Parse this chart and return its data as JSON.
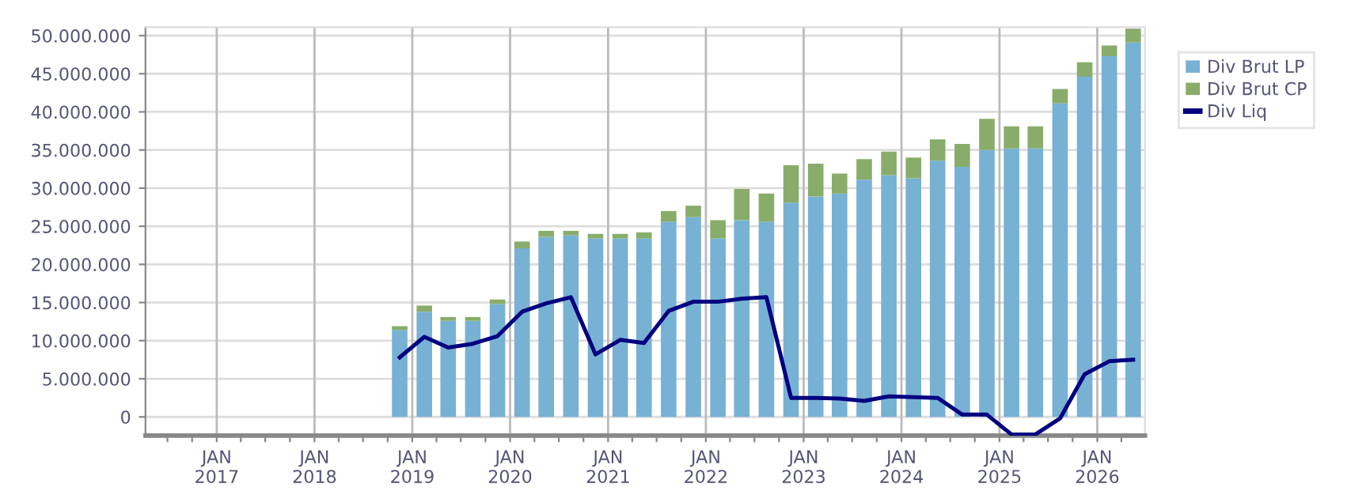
{
  "chart_data": {
    "type": "bar",
    "stacked": true,
    "x": [
      "2018-11-15",
      "2019-02-15",
      "2019-05-15",
      "2019-08-15",
      "2019-11-15",
      "2020-02-15",
      "2020-05-15",
      "2020-08-15",
      "2020-11-15",
      "2021-02-15",
      "2021-05-15",
      "2021-08-15",
      "2021-11-15",
      "2022-02-15",
      "2022-05-15",
      "2022-08-15",
      "2022-11-15",
      "2023-02-15",
      "2023-05-15",
      "2023-08-15",
      "2023-11-15",
      "2024-02-15",
      "2024-05-15",
      "2024-08-15",
      "2024-11-15",
      "2025-02-15",
      "2025-05-15",
      "2025-08-15",
      "2025-11-15",
      "2026-02-15",
      "2026-05-15"
    ],
    "series": [
      {
        "name": "Div Brut LP",
        "color": "#77b1d4",
        "values": [
          11400000,
          13800000,
          12600000,
          12600000,
          14800000,
          22100000,
          23600000,
          23800000,
          23400000,
          23400000,
          23400000,
          25600000,
          26200000,
          23400000,
          25800000,
          25600000,
          28100000,
          28900000,
          29300000,
          31100000,
          31700000,
          31300000,
          33600000,
          32800000,
          35000000,
          35200000,
          35200000,
          41100000,
          44600000,
          47300000,
          49100000
        ]
      },
      {
        "name": "Div Brut CP",
        "color": "#88ad6a",
        "values": [
          500000,
          800000,
          500000,
          500000,
          600000,
          900000,
          800000,
          600000,
          600000,
          600000,
          800000,
          1400000,
          1500000,
          2400000,
          4100000,
          3700000,
          4900000,
          4300000,
          2600000,
          2700000,
          3100000,
          2700000,
          2800000,
          3000000,
          4100000,
          2900000,
          2900000,
          1900000,
          1900000,
          1400000,
          1800000
        ]
      },
      {
        "name": "Div Liq",
        "type": "line",
        "color": "#000080",
        "values": [
          7800000,
          10500000,
          9100000,
          9600000,
          10600000,
          13800000,
          14900000,
          15700000,
          8200000,
          10100000,
          9700000,
          13900000,
          15100000,
          15100000,
          15500000,
          15700000,
          2500000,
          2500000,
          2400000,
          2100000,
          2700000,
          2600000,
          2500000,
          300000,
          300000,
          -2300000,
          -2300000,
          -200000,
          5600000,
          7300000,
          7500000
        ]
      }
    ],
    "xlim": [
      "2016-04-10",
      "2026-06-28"
    ],
    "xticks": [
      {
        "value": "2016-07-01",
        "label": null
      },
      {
        "value": "2016-10-01",
        "label": null
      },
      {
        "value": "2017-01-01",
        "label": "JAN\n2017"
      },
      {
        "value": "2017-04-01",
        "label": null
      },
      {
        "value": "2017-07-01",
        "label": null
      },
      {
        "value": "2017-10-01",
        "label": null
      },
      {
        "value": "2018-01-01",
        "label": "JAN\n2018"
      },
      {
        "value": "2018-04-01",
        "label": null
      },
      {
        "value": "2018-07-01",
        "label": null
      },
      {
        "value": "2018-10-01",
        "label": null
      },
      {
        "value": "2019-01-01",
        "label": "JAN\n2019"
      },
      {
        "value": "2019-04-01",
        "label": null
      },
      {
        "value": "2019-07-01",
        "label": null
      },
      {
        "value": "2019-10-01",
        "label": null
      },
      {
        "value": "2020-01-01",
        "label": "JAN\n2020"
      },
      {
        "value": "2020-04-01",
        "label": null
      },
      {
        "value": "2020-07-01",
        "label": null
      },
      {
        "value": "2020-10-01",
        "label": null
      },
      {
        "value": "2021-01-01",
        "label": "JAN\n2021"
      },
      {
        "value": "2021-04-01",
        "label": null
      },
      {
        "value": "2021-07-01",
        "label": null
      },
      {
        "value": "2021-10-01",
        "label": null
      },
      {
        "value": "2022-01-01",
        "label": "JAN\n2022"
      },
      {
        "value": "2022-04-01",
        "label": null
      },
      {
        "value": "2022-07-01",
        "label": null
      },
      {
        "value": "2022-10-01",
        "label": null
      },
      {
        "value": "2023-01-01",
        "label": "JAN\n2023"
      },
      {
        "value": "2023-04-01",
        "label": null
      },
      {
        "value": "2023-07-01",
        "label": null
      },
      {
        "value": "2023-10-01",
        "label": null
      },
      {
        "value": "2024-01-01",
        "label": "JAN\n2024"
      },
      {
        "value": "2024-04-01",
        "label": null
      },
      {
        "value": "2024-07-01",
        "label": null
      },
      {
        "value": "2024-10-01",
        "label": null
      },
      {
        "value": "2025-01-01",
        "label": "JAN\n2025"
      },
      {
        "value": "2025-04-01",
        "label": null
      },
      {
        "value": "2025-07-01",
        "label": null
      },
      {
        "value": "2025-10-01",
        "label": null
      },
      {
        "value": "2026-01-01",
        "label": "JAN\n2026"
      },
      {
        "value": "2026-04-01",
        "label": null
      }
    ],
    "ylim": [
      -2450000,
      51100000
    ],
    "yticks": [
      {
        "value": 0,
        "label": "0"
      },
      {
        "value": 5000000,
        "label": "5.000.000"
      },
      {
        "value": 10000000,
        "label": "10.000.000"
      },
      {
        "value": 15000000,
        "label": "15.000.000"
      },
      {
        "value": 20000000,
        "label": "20.000.000"
      },
      {
        "value": 25000000,
        "label": "25.000.000"
      },
      {
        "value": 30000000,
        "label": "30.000.000"
      },
      {
        "value": 35000000,
        "label": "35.000.000"
      },
      {
        "value": 40000000,
        "label": "40.000.000"
      },
      {
        "value": 45000000,
        "label": "45.000.000"
      },
      {
        "value": 50000000,
        "label": "50.000.000"
      }
    ],
    "grid": true,
    "legend": "top right",
    "line_style": "solid",
    "marker": "none"
  }
}
